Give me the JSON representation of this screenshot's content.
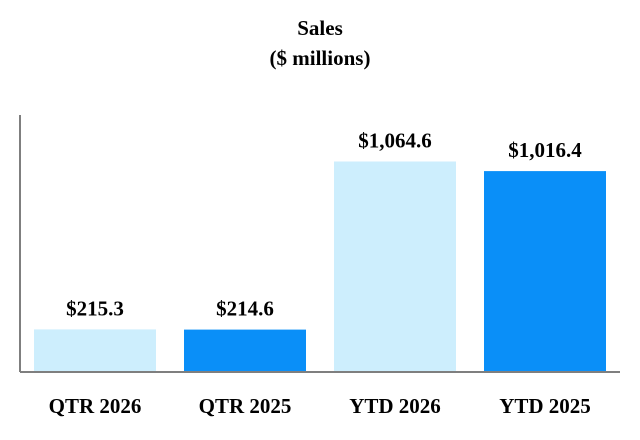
{
  "chart_data": {
    "type": "bar",
    "title": "Sales",
    "subtitle": "($ millions)",
    "categories": [
      "QTR 2026",
      "QTR 2025",
      "YTD 2026",
      "YTD 2025"
    ],
    "values": [
      215.3,
      214.6,
      1064.6,
      1016.4
    ],
    "data_labels": [
      "$215.3",
      "$214.6",
      "$1,064.6",
      "$1,016.4"
    ],
    "bar_colors": [
      "#cdeefd",
      "#0a8ff8",
      "#cdeefd",
      "#0a8ff8"
    ],
    "axis_color": "#7f7f7f",
    "ylim": [
      0,
      1300
    ],
    "grid": false,
    "legend": "none"
  }
}
